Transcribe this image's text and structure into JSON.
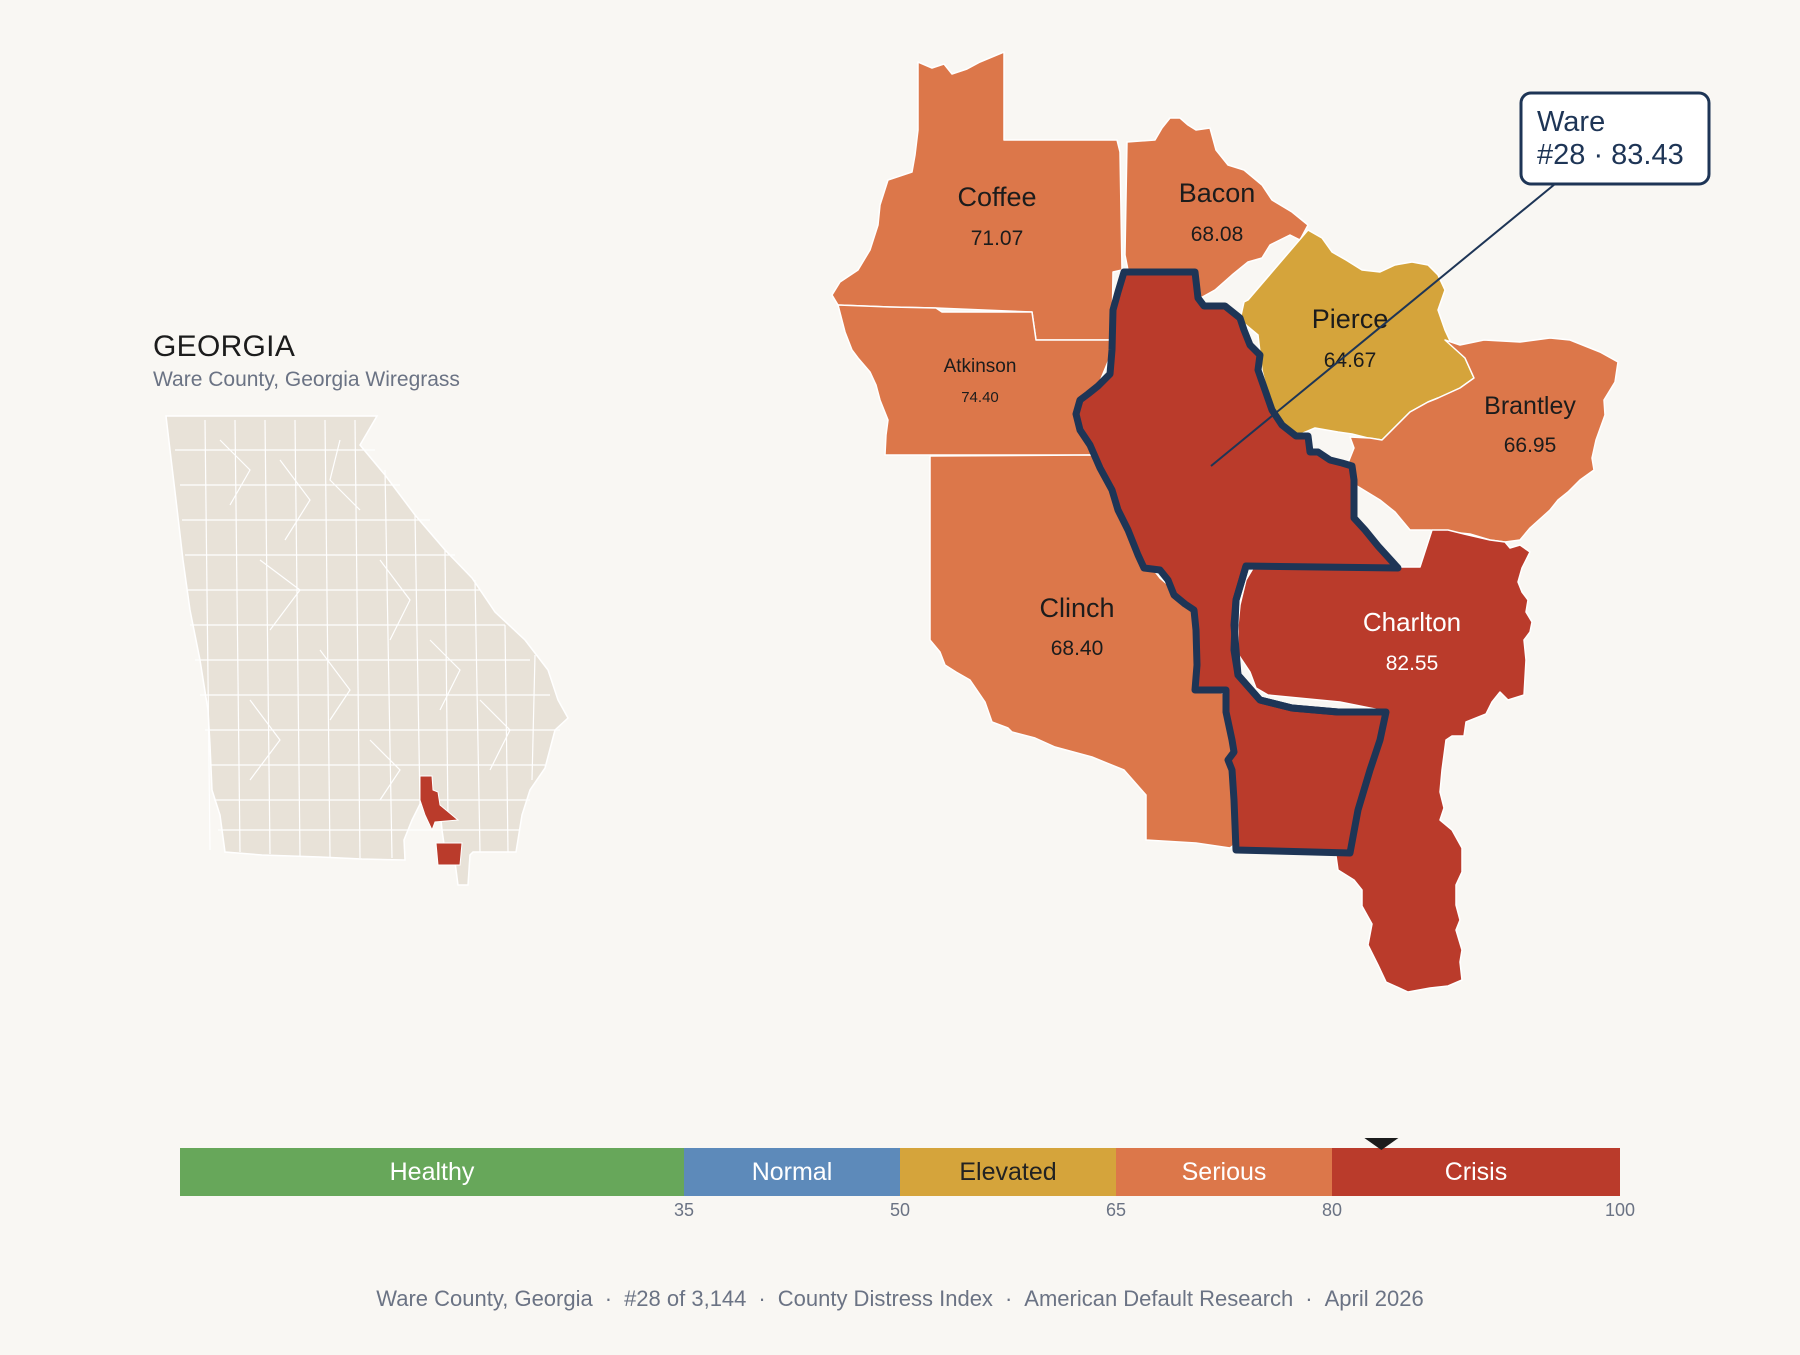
{
  "state": {
    "name": "GEORGIA",
    "subtitle": "Ware County, Georgia Wiregrass"
  },
  "focus": {
    "name": "Ware",
    "label": "#28 · 83.43",
    "score": 83.43
  },
  "counties": [
    {
      "name": "Coffee",
      "score": "71.07",
      "category": "Serious"
    },
    {
      "name": "Bacon",
      "score": "68.08",
      "category": "Serious"
    },
    {
      "name": "Atkinson",
      "score": "74.40",
      "category": "Serious"
    },
    {
      "name": "Pierce",
      "score": "64.67",
      "category": "Elevated"
    },
    {
      "name": "Brantley",
      "score": "66.95",
      "category": "Serious"
    },
    {
      "name": "Clinch",
      "score": "68.40",
      "category": "Serious"
    },
    {
      "name": "Charlton",
      "score": "82.55",
      "category": "Crisis"
    },
    {
      "name": "Ware",
      "score": "83.43",
      "category": "Crisis"
    }
  ],
  "scale": {
    "segments": [
      {
        "label": "Healthy",
        "from": 0,
        "to": 35,
        "color": "#67a75a",
        "text": "#ffffff"
      },
      {
        "label": "Normal",
        "from": 35,
        "to": 50,
        "color": "#5d8aba",
        "text": "#ffffff"
      },
      {
        "label": "Elevated",
        "from": 50,
        "to": 65,
        "color": "#d5a43b",
        "text": "#222222"
      },
      {
        "label": "Serious",
        "from": 65,
        "to": 80,
        "color": "#dc774a",
        "text": "#ffffff"
      },
      {
        "label": "Crisis",
        "from": 80,
        "to": 100,
        "color": "#ba3b2b",
        "text": "#ffffff"
      }
    ],
    "ticks": [
      "35",
      "50",
      "65",
      "80",
      "100"
    ],
    "marker_value": 83.43
  },
  "footer": {
    "county": "Ware County, Georgia",
    "rank": "#28 of 3,144",
    "index": "County Distress Index",
    "publisher": "American Default Research",
    "date": "April 2026",
    "separator": "·"
  },
  "colors": {
    "background": "#f9f7f3",
    "state_fill": "#e8e2d8",
    "highlight": "#ba3b2b",
    "outline": "#1e3556"
  }
}
